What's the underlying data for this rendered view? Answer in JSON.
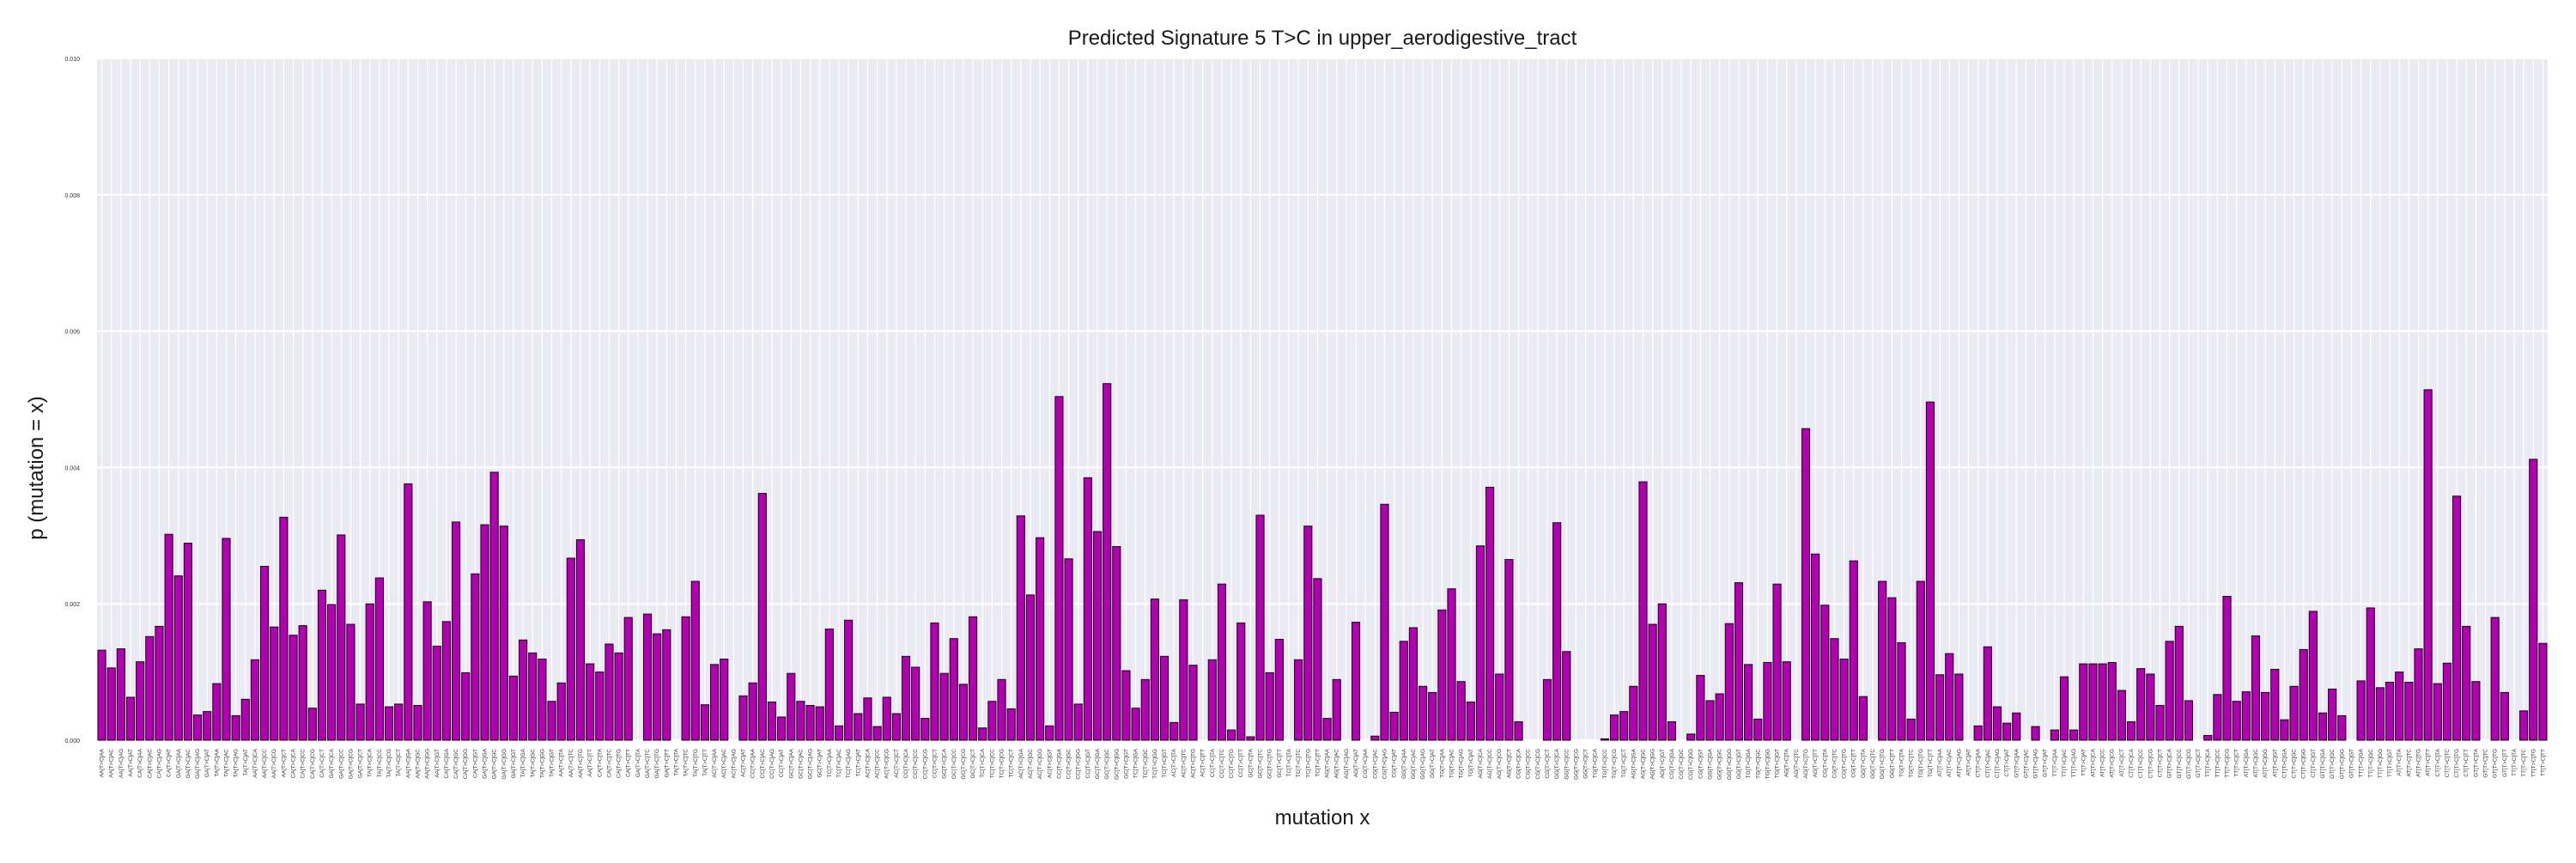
{
  "chart_data": {
    "type": "bar",
    "title": "Predicted Signature 5 T>C in upper_aerodigestive_tract",
    "xlabel": "mutation x",
    "ylabel": "p (mutation = x)",
    "ylim": [
      0,
      0.01
    ],
    "yticks": [
      "0.000",
      "0.002",
      "0.004",
      "0.006",
      "0.008",
      "0.010"
    ],
    "grid": true,
    "colors": {
      "bar": "#b000b0",
      "bar_edge": "#1a001a",
      "plot_bg": "#eaeaf2",
      "grid": "#ffffff"
    },
    "categories": [
      "AA[T>C]AA",
      "AA[T>C]AC",
      "AA[T>C]AG",
      "AA[T>C]AT",
      "CA[T>C]AA",
      "CA[T>C]AC",
      "CA[T>C]AG",
      "CA[T>C]AT",
      "GA[T>C]AA",
      "GA[T>C]AC",
      "GA[T>C]AG",
      "GA[T>C]AT",
      "TA[T>C]AA",
      "TA[T>C]AC",
      "TA[T>C]AG",
      "TA[T>C]AT",
      "AA[T>C]CA",
      "AA[T>C]CC",
      "AA[T>C]CG",
      "AA[T>C]CT",
      "CA[T>C]CA",
      "CA[T>C]CC",
      "CA[T>C]CG",
      "CA[T>C]CT",
      "GA[T>C]CA",
      "GA[T>C]CC",
      "GA[T>C]CG",
      "GA[T>C]CT",
      "TA[T>C]CA",
      "TA[T>C]CC",
      "TA[T>C]CG",
      "TA[T>C]CT",
      "AA[T>C]GA",
      "AA[T>C]GC",
      "AA[T>C]GG",
      "AA[T>C]GT",
      "CA[T>C]GA",
      "CA[T>C]GC",
      "CA[T>C]GG",
      "CA[T>C]GT",
      "GA[T>C]GA",
      "GA[T>C]GC",
      "GA[T>C]GG",
      "GA[T>C]GT",
      "TA[T>C]GA",
      "TA[T>C]GC",
      "TA[T>C]GG",
      "TA[T>C]GT",
      "AA[T>C]TA",
      "AA[T>C]TC",
      "AA[T>C]TG",
      "AA[T>C]TT",
      "CA[T>C]TA",
      "CA[T>C]TC",
      "CA[T>C]TG",
      "CA[T>C]TT",
      "GA[T>C]TA",
      "GA[T>C]TC",
      "GA[T>C]TG",
      "GA[T>C]TT",
      "TA[T>C]TA",
      "TA[T>C]TC",
      "TA[T>C]TG",
      "TA[T>C]TT",
      "AC[T>C]AA",
      "AC[T>C]AC",
      "AC[T>C]AG",
      "AC[T>C]AT",
      "CC[T>C]AA",
      "CC[T>C]AC",
      "CC[T>C]AG",
      "CC[T>C]AT",
      "GC[T>C]AA",
      "GC[T>C]AC",
      "GC[T>C]AG",
      "GC[T>C]AT",
      "TC[T>C]AA",
      "TC[T>C]AC",
      "TC[T>C]AG",
      "TC[T>C]AT",
      "AC[T>C]CA",
      "AC[T>C]CC",
      "AC[T>C]CG",
      "AC[T>C]CT",
      "CC[T>C]CA",
      "CC[T>C]CC",
      "CC[T>C]CG",
      "CC[T>C]CT",
      "GC[T>C]CA",
      "GC[T>C]CC",
      "GC[T>C]CG",
      "GC[T>C]CT",
      "TC[T>C]CA",
      "TC[T>C]CC",
      "TC[T>C]CG",
      "TC[T>C]CT",
      "AC[T>C]GA",
      "AC[T>C]GC",
      "AC[T>C]GG",
      "AC[T>C]GT",
      "CC[T>C]GA",
      "CC[T>C]GC",
      "CC[T>C]GG",
      "CC[T>C]GT",
      "GC[T>C]GA",
      "GC[T>C]GC",
      "GC[T>C]GG",
      "GC[T>C]GT",
      "TC[T>C]GA",
      "TC[T>C]GC",
      "TC[T>C]GG",
      "TC[T>C]GT",
      "AC[T>C]TA",
      "AC[T>C]TC",
      "AC[T>C]TG",
      "AC[T>C]TT",
      "CC[T>C]TA",
      "CC[T>C]TC",
      "CC[T>C]TG",
      "CC[T>C]TT",
      "GC[T>C]TA",
      "GC[T>C]TC",
      "GC[T>C]TG",
      "GC[T>C]TT",
      "TC[T>C]TA",
      "TC[T>C]TC",
      "TC[T>C]TG",
      "TC[T>C]TT",
      "AG[T>C]AA",
      "AG[T>C]AC",
      "AG[T>C]AG",
      "AG[T>C]AT",
      "CG[T>C]AA",
      "CG[T>C]AC",
      "CG[T>C]AG",
      "CG[T>C]AT",
      "GG[T>C]AA",
      "GG[T>C]AC",
      "GG[T>C]AG",
      "GG[T>C]AT",
      "TG[T>C]AA",
      "TG[T>C]AC",
      "TG[T>C]AG",
      "TG[T>C]AT",
      "AG[T>C]CA",
      "AG[T>C]CC",
      "AG[T>C]CG",
      "AG[T>C]CT",
      "CG[T>C]CA",
      "CG[T>C]CC",
      "CG[T>C]CG",
      "CG[T>C]CT",
      "GG[T>C]CA",
      "GG[T>C]CC",
      "GG[T>C]CG",
      "GG[T>C]CT",
      "TG[T>C]CA",
      "TG[T>C]CC",
      "TG[T>C]CG",
      "TG[T>C]CT",
      "AG[T>C]GA",
      "AG[T>C]GC",
      "AG[T>C]GG",
      "AG[T>C]GT",
      "CG[T>C]GA",
      "CG[T>C]GC",
      "CG[T>C]GG",
      "CG[T>C]GT",
      "GG[T>C]GA",
      "GG[T>C]GC",
      "GG[T>C]GG",
      "GG[T>C]GT",
      "TG[T>C]GA",
      "TG[T>C]GC",
      "TG[T>C]GG",
      "TG[T>C]GT",
      "AG[T>C]TA",
      "AG[T>C]TC",
      "AG[T>C]TG",
      "AG[T>C]TT",
      "CG[T>C]TA",
      "CG[T>C]TC",
      "CG[T>C]TG",
      "CG[T>C]TT",
      "GG[T>C]TA",
      "GG[T>C]TC",
      "GG[T>C]TG",
      "GG[T>C]TT",
      "TG[T>C]TA",
      "TG[T>C]TC",
      "TG[T>C]TG",
      "TG[T>C]TT",
      "AT[T>C]AA",
      "AT[T>C]AC",
      "AT[T>C]AG",
      "AT[T>C]AT",
      "CT[T>C]AA",
      "CT[T>C]AC",
      "CT[T>C]AG",
      "CT[T>C]AT",
      "GT[T>C]AA",
      "GT[T>C]AC",
      "GT[T>C]AG",
      "GT[T>C]AT",
      "TT[T>C]AA",
      "TT[T>C]AC",
      "TT[T>C]AG",
      "TT[T>C]AT",
      "AT[T>C]CA",
      "AT[T>C]CC",
      "AT[T>C]CG",
      "AT[T>C]CT",
      "CT[T>C]CA",
      "CT[T>C]CC",
      "CT[T>C]CG",
      "CT[T>C]CT",
      "GT[T>C]CA",
      "GT[T>C]CC",
      "GT[T>C]CG",
      "GT[T>C]CT",
      "TT[T>C]CA",
      "TT[T>C]CC",
      "TT[T>C]CG",
      "TT[T>C]CT",
      "AT[T>C]GA",
      "AT[T>C]GC",
      "AT[T>C]GG",
      "AT[T>C]GT",
      "CT[T>C]GA",
      "CT[T>C]GC",
      "CT[T>C]GG",
      "CT[T>C]GT",
      "GT[T>C]GA",
      "GT[T>C]GC",
      "GT[T>C]GG",
      "GT[T>C]GT",
      "TT[T>C]GA",
      "TT[T>C]GC",
      "TT[T>C]GG",
      "TT[T>C]GT",
      "AT[T>C]TA",
      "AT[T>C]TC",
      "AT[T>C]TG",
      "AT[T>C]TT",
      "CT[T>C]TA",
      "CT[T>C]TC",
      "CT[T>C]TG",
      "CT[T>C]TT",
      "GT[T>C]TA",
      "GT[T>C]TC",
      "GT[T>C]TG",
      "GT[T>C]TT",
      "TT[T>C]TA",
      "TT[T>C]TC",
      "TT[T>C]TG",
      "TT[T>C]TT"
    ],
    "values": [
      0.00132,
      0.00106,
      0.00134,
      0.00063,
      0.00115,
      0.00152,
      0.00167,
      0.00302,
      0.00241,
      0.00289,
      0.00037,
      0.00042,
      0.00083,
      0.00296,
      0.00036,
      0.0006,
      0.00118,
      0.00255,
      0.00166,
      0.00327,
      0.00154,
      0.00168,
      0.00047,
      0.0022,
      0.00199,
      0.00301,
      0.0017,
      0.00053,
      0.002,
      0.00238,
      0.00049,
      0.00053,
      0.00376,
      0.00051,
      0.00203,
      0.00138,
      0.00174,
      0.0032,
      0.00099,
      0.00244,
      0.00316,
      0.00393,
      0.00314,
      0.00094,
      0.00147,
      0.00128,
      0.00119,
      0.00057,
      0.00084,
      0.00267,
      0.00294,
      0.00112,
      0.001,
      0.00141,
      0.00128,
      0.0018,
      0.0,
      0.00185,
      0.00156,
      0.00162,
      0.0,
      0.00181,
      0.00233,
      0.00052,
      0.00111,
      0.00119,
      0.0,
      0.00065,
      0.00084,
      0.00362,
      0.00056,
      0.00034,
      0.00098,
      0.00057,
      0.00051,
      0.00049,
      0.00163,
      0.00021,
      0.00176,
      0.00039,
      0.00062,
      0.0002,
      0.00063,
      0.00039,
      0.00123,
      0.00107,
      0.00032,
      0.00172,
      0.00098,
      0.00149,
      0.00082,
      0.00181,
      0.00018,
      0.00057,
      0.00089,
      0.00046,
      0.00329,
      0.00213,
      0.00297,
      0.00021,
      0.00504,
      0.00266,
      0.00053,
      0.00385,
      0.00306,
      0.00523,
      0.00284,
      0.00102,
      0.00047,
      0.00089,
      0.00207,
      0.00123,
      0.00026,
      0.00206,
      0.0011,
      0.0,
      0.00118,
      0.00229,
      0.00015,
      0.00172,
      5e-05,
      0.0033,
      0.00099,
      0.00148,
      0.0,
      0.00118,
      0.00314,
      0.00237,
      0.00032,
      0.00089,
      0.0,
      0.00173,
      0.0,
      6e-05,
      0.00346,
      0.00041,
      0.00145,
      0.00165,
      0.00079,
      0.0007,
      0.00191,
      0.00222,
      0.00086,
      0.00056,
      0.00285,
      0.00371,
      0.00097,
      0.00265,
      0.00027,
      0.0,
      0.0,
      0.00089,
      0.00319,
      0.0013,
      0.0,
      0.0,
      0.0,
      2e-05,
      0.00037,
      0.00042,
      0.00079,
      0.00379,
      0.0017,
      0.002,
      0.00027,
      0.0,
      9e-05,
      0.00095,
      0.00058,
      0.00068,
      0.00171,
      0.00231,
      0.00111,
      0.00031,
      0.00114,
      0.00229,
      0.00115,
      0.0,
      0.00457,
      0.00273,
      0.00198,
      0.00149,
      0.00119,
      0.00263,
      0.00064,
      0.0,
      0.00233,
      0.00209,
      0.00143,
      0.00031,
      0.00233,
      0.00496,
      0.00096,
      0.00127,
      0.00097,
      0.0,
      0.00021,
      0.00137,
      0.00049,
      0.00025,
      0.0004,
      0.0,
      0.0002,
      0.0,
      0.00015,
      0.00093,
      0.00015,
      0.00112,
      0.00112,
      0.00112,
      0.00114,
      0.00073,
      0.00027,
      0.00105,
      0.00097,
      0.00051,
      0.00145,
      0.00167,
      0.00058,
      0.0,
      7e-05,
      0.00067,
      0.00211,
      0.00057,
      0.00071,
      0.00153,
      0.0007,
      0.00104,
      0.0003,
      0.00079,
      0.00133,
      0.00189,
      0.0004,
      0.00075,
      0.00036,
      0.0,
      0.00087,
      0.00194,
      0.00077,
      0.00085,
      0.001,
      0.00085,
      0.00134,
      0.00514,
      0.00083,
      0.00113,
      0.00358,
      0.00167,
      0.00086,
      0.0,
      0.0018,
      0.0007,
      0.0,
      0.00043,
      0.00412,
      0.00142
    ]
  }
}
